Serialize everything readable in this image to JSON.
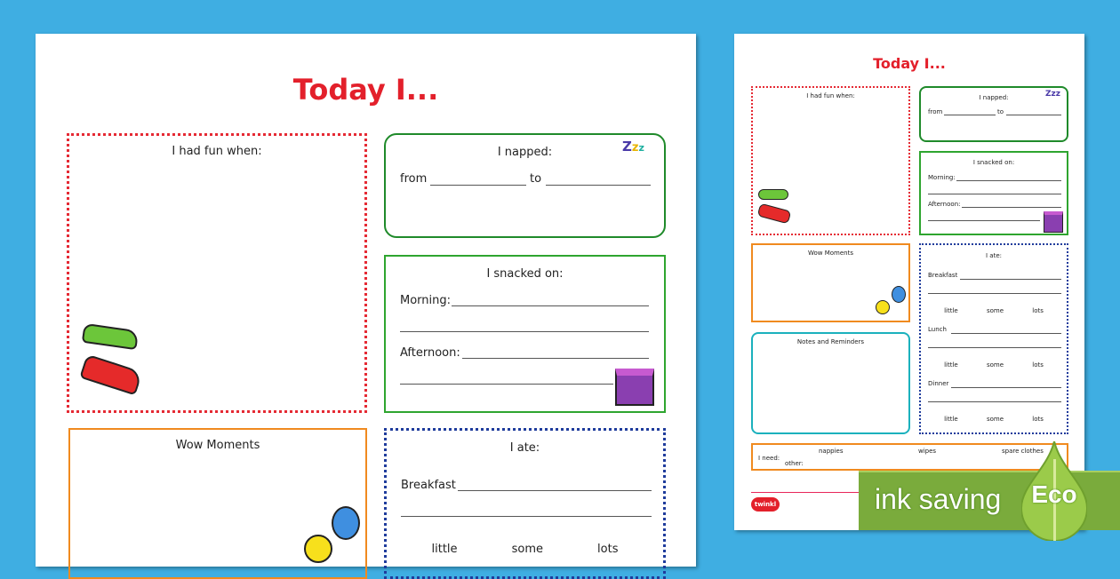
{
  "title": "Today I...",
  "fun": {
    "label": "I had fun when:"
  },
  "napped": {
    "label": "I napped:",
    "from": "from",
    "to": "to"
  },
  "snacked": {
    "label": "I snacked on:",
    "morning": "Morning:",
    "afternoon": "Afternoon:"
  },
  "wow": {
    "label": "Wow Moments"
  },
  "ate": {
    "label": "I ate:",
    "breakfast": "Breakfast",
    "lunch": "Lunch",
    "dinner": "Dinner",
    "amounts": [
      "little",
      "some",
      "lots"
    ]
  },
  "notes": {
    "label": "Notes and Reminders"
  },
  "need": {
    "label": "I need:",
    "items": [
      "nappies",
      "wipes",
      "spare clothes"
    ],
    "other": "other:"
  },
  "logo": "twinkl",
  "banner": {
    "text": "ink saving",
    "badge": "Eco"
  },
  "colors": {
    "background": "#3faee2",
    "title": "#e3202b",
    "banner": "#7aab3c"
  }
}
